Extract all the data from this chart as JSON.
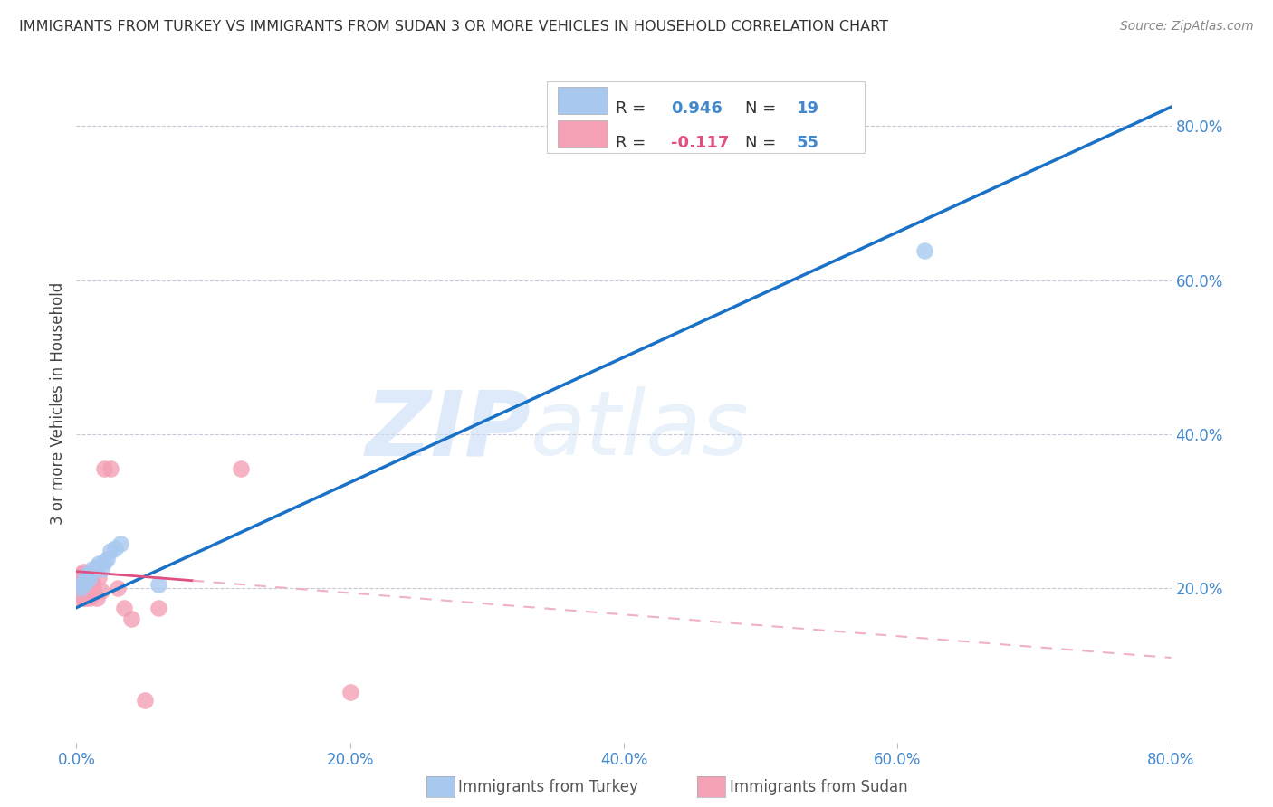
{
  "title": "IMMIGRANTS FROM TURKEY VS IMMIGRANTS FROM SUDAN 3 OR MORE VEHICLES IN HOUSEHOLD CORRELATION CHART",
  "source": "Source: ZipAtlas.com",
  "ylabel": "3 or more Vehicles in Household",
  "xlim": [
    0.0,
    0.8
  ],
  "ylim": [
    0.0,
    0.88
  ],
  "xticks": [
    0.0,
    0.2,
    0.4,
    0.6,
    0.8
  ],
  "yticks": [
    0.2,
    0.4,
    0.6,
    0.8
  ],
  "xtick_labels": [
    "0.0%",
    "20.0%",
    "40.0%",
    "60.0%",
    "80.0%"
  ],
  "ytick_labels": [
    "20.0%",
    "40.0%",
    "60.0%",
    "80.0%"
  ],
  "turkey_color": "#a8c8f0",
  "sudan_color": "#f4a0b5",
  "turkey_line_color": "#1a72c7",
  "sudan_line_color": "#e05080",
  "sudan_line_dashed_color": "#f0b0c8",
  "R_turkey": 0.946,
  "N_turkey": 19,
  "R_sudan": -0.117,
  "N_sudan": 55,
  "watermark_zip": "ZIP",
  "watermark_atlas": "atlas",
  "turkey_line_x0": 0.0,
  "turkey_line_y0": 0.175,
  "turkey_line_x1": 0.8,
  "turkey_line_y1": 0.825,
  "sudan_line_x0": 0.0,
  "sudan_line_y0": 0.222,
  "sudan_line_x1": 0.8,
  "sudan_line_y1": 0.11,
  "sudan_solid_xend": 0.085,
  "turkey_scatter_x": [
    0.003,
    0.005,
    0.006,
    0.007,
    0.008,
    0.009,
    0.01,
    0.011,
    0.012,
    0.014,
    0.016,
    0.018,
    0.02,
    0.022,
    0.025,
    0.028,
    0.032,
    0.06,
    0.62
  ],
  "turkey_scatter_y": [
    0.2,
    0.205,
    0.21,
    0.215,
    0.218,
    0.212,
    0.218,
    0.222,
    0.225,
    0.228,
    0.232,
    0.225,
    0.235,
    0.238,
    0.248,
    0.252,
    0.258,
    0.205,
    0.638
  ],
  "sudan_scatter_x": [
    0.001,
    0.001,
    0.002,
    0.002,
    0.002,
    0.002,
    0.003,
    0.003,
    0.003,
    0.003,
    0.003,
    0.004,
    0.004,
    0.004,
    0.004,
    0.004,
    0.005,
    0.005,
    0.005,
    0.005,
    0.005,
    0.005,
    0.006,
    0.006,
    0.006,
    0.006,
    0.006,
    0.007,
    0.007,
    0.007,
    0.007,
    0.008,
    0.008,
    0.008,
    0.009,
    0.009,
    0.01,
    0.01,
    0.01,
    0.011,
    0.012,
    0.012,
    0.013,
    0.015,
    0.016,
    0.018,
    0.02,
    0.025,
    0.03,
    0.035,
    0.04,
    0.05,
    0.06,
    0.12,
    0.2
  ],
  "sudan_scatter_y": [
    0.198,
    0.205,
    0.192,
    0.198,
    0.205,
    0.215,
    0.188,
    0.195,
    0.2,
    0.205,
    0.215,
    0.19,
    0.196,
    0.202,
    0.21,
    0.218,
    0.188,
    0.193,
    0.2,
    0.205,
    0.212,
    0.222,
    0.19,
    0.196,
    0.202,
    0.21,
    0.218,
    0.187,
    0.195,
    0.205,
    0.216,
    0.19,
    0.2,
    0.212,
    0.195,
    0.21,
    0.188,
    0.2,
    0.215,
    0.205,
    0.192,
    0.208,
    0.196,
    0.188,
    0.215,
    0.197,
    0.355,
    0.355,
    0.2,
    0.175,
    0.16,
    0.055,
    0.175,
    0.355,
    0.065
  ]
}
